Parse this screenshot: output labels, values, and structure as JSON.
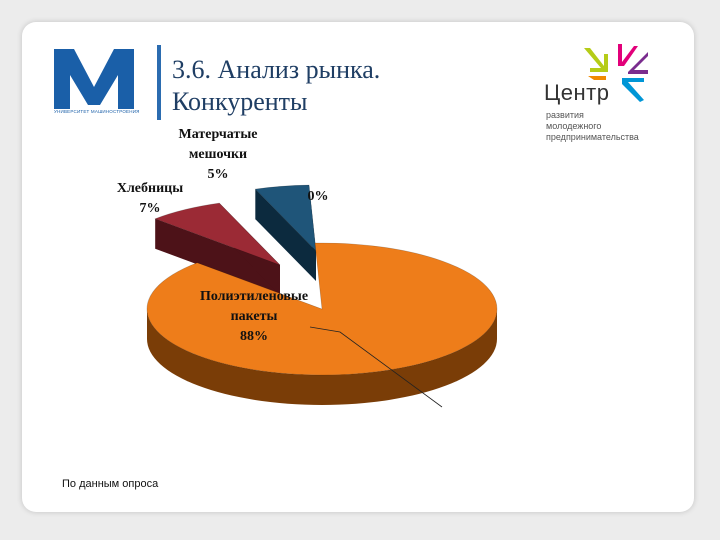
{
  "slide": {
    "title": "3.6. Анализ рынка.\nКонкуренты",
    "source_note": "По данным опроса"
  },
  "logos": {
    "left": {
      "icon": "university-logo-icon",
      "caption": "УНИВЕРСИТЕТ МАШИНОСТРОЕНИЯ",
      "color": "#1a5fa8"
    },
    "right": {
      "icon": "center-logo-icon",
      "name": "Центр",
      "subtitle": "развития\nмолодежного\nпредпринимательства"
    }
  },
  "chart_data": {
    "type": "pie",
    "style": "3d-exploded",
    "slices": [
      {
        "label_lines": [
          "Полиэтиленовые",
          "пакеты"
        ],
        "value": 88,
        "value_label": "88%",
        "color": "#ee7d1a",
        "side": "#7a3d07"
      },
      {
        "label_lines": [
          "Хлебницы"
        ],
        "value": 7,
        "value_label": "7%",
        "color": "#9b2a35",
        "side": "#4d1218"
      },
      {
        "label_lines": [
          "Матерчатые",
          "мешочки"
        ],
        "value": 5,
        "value_label": "5%",
        "color": "#1f5579",
        "side": "#0c2a3e"
      },
      {
        "label_lines": [],
        "value": 0,
        "value_label": "0%",
        "color": "#6b8e23",
        "side": "#33450f"
      }
    ]
  }
}
